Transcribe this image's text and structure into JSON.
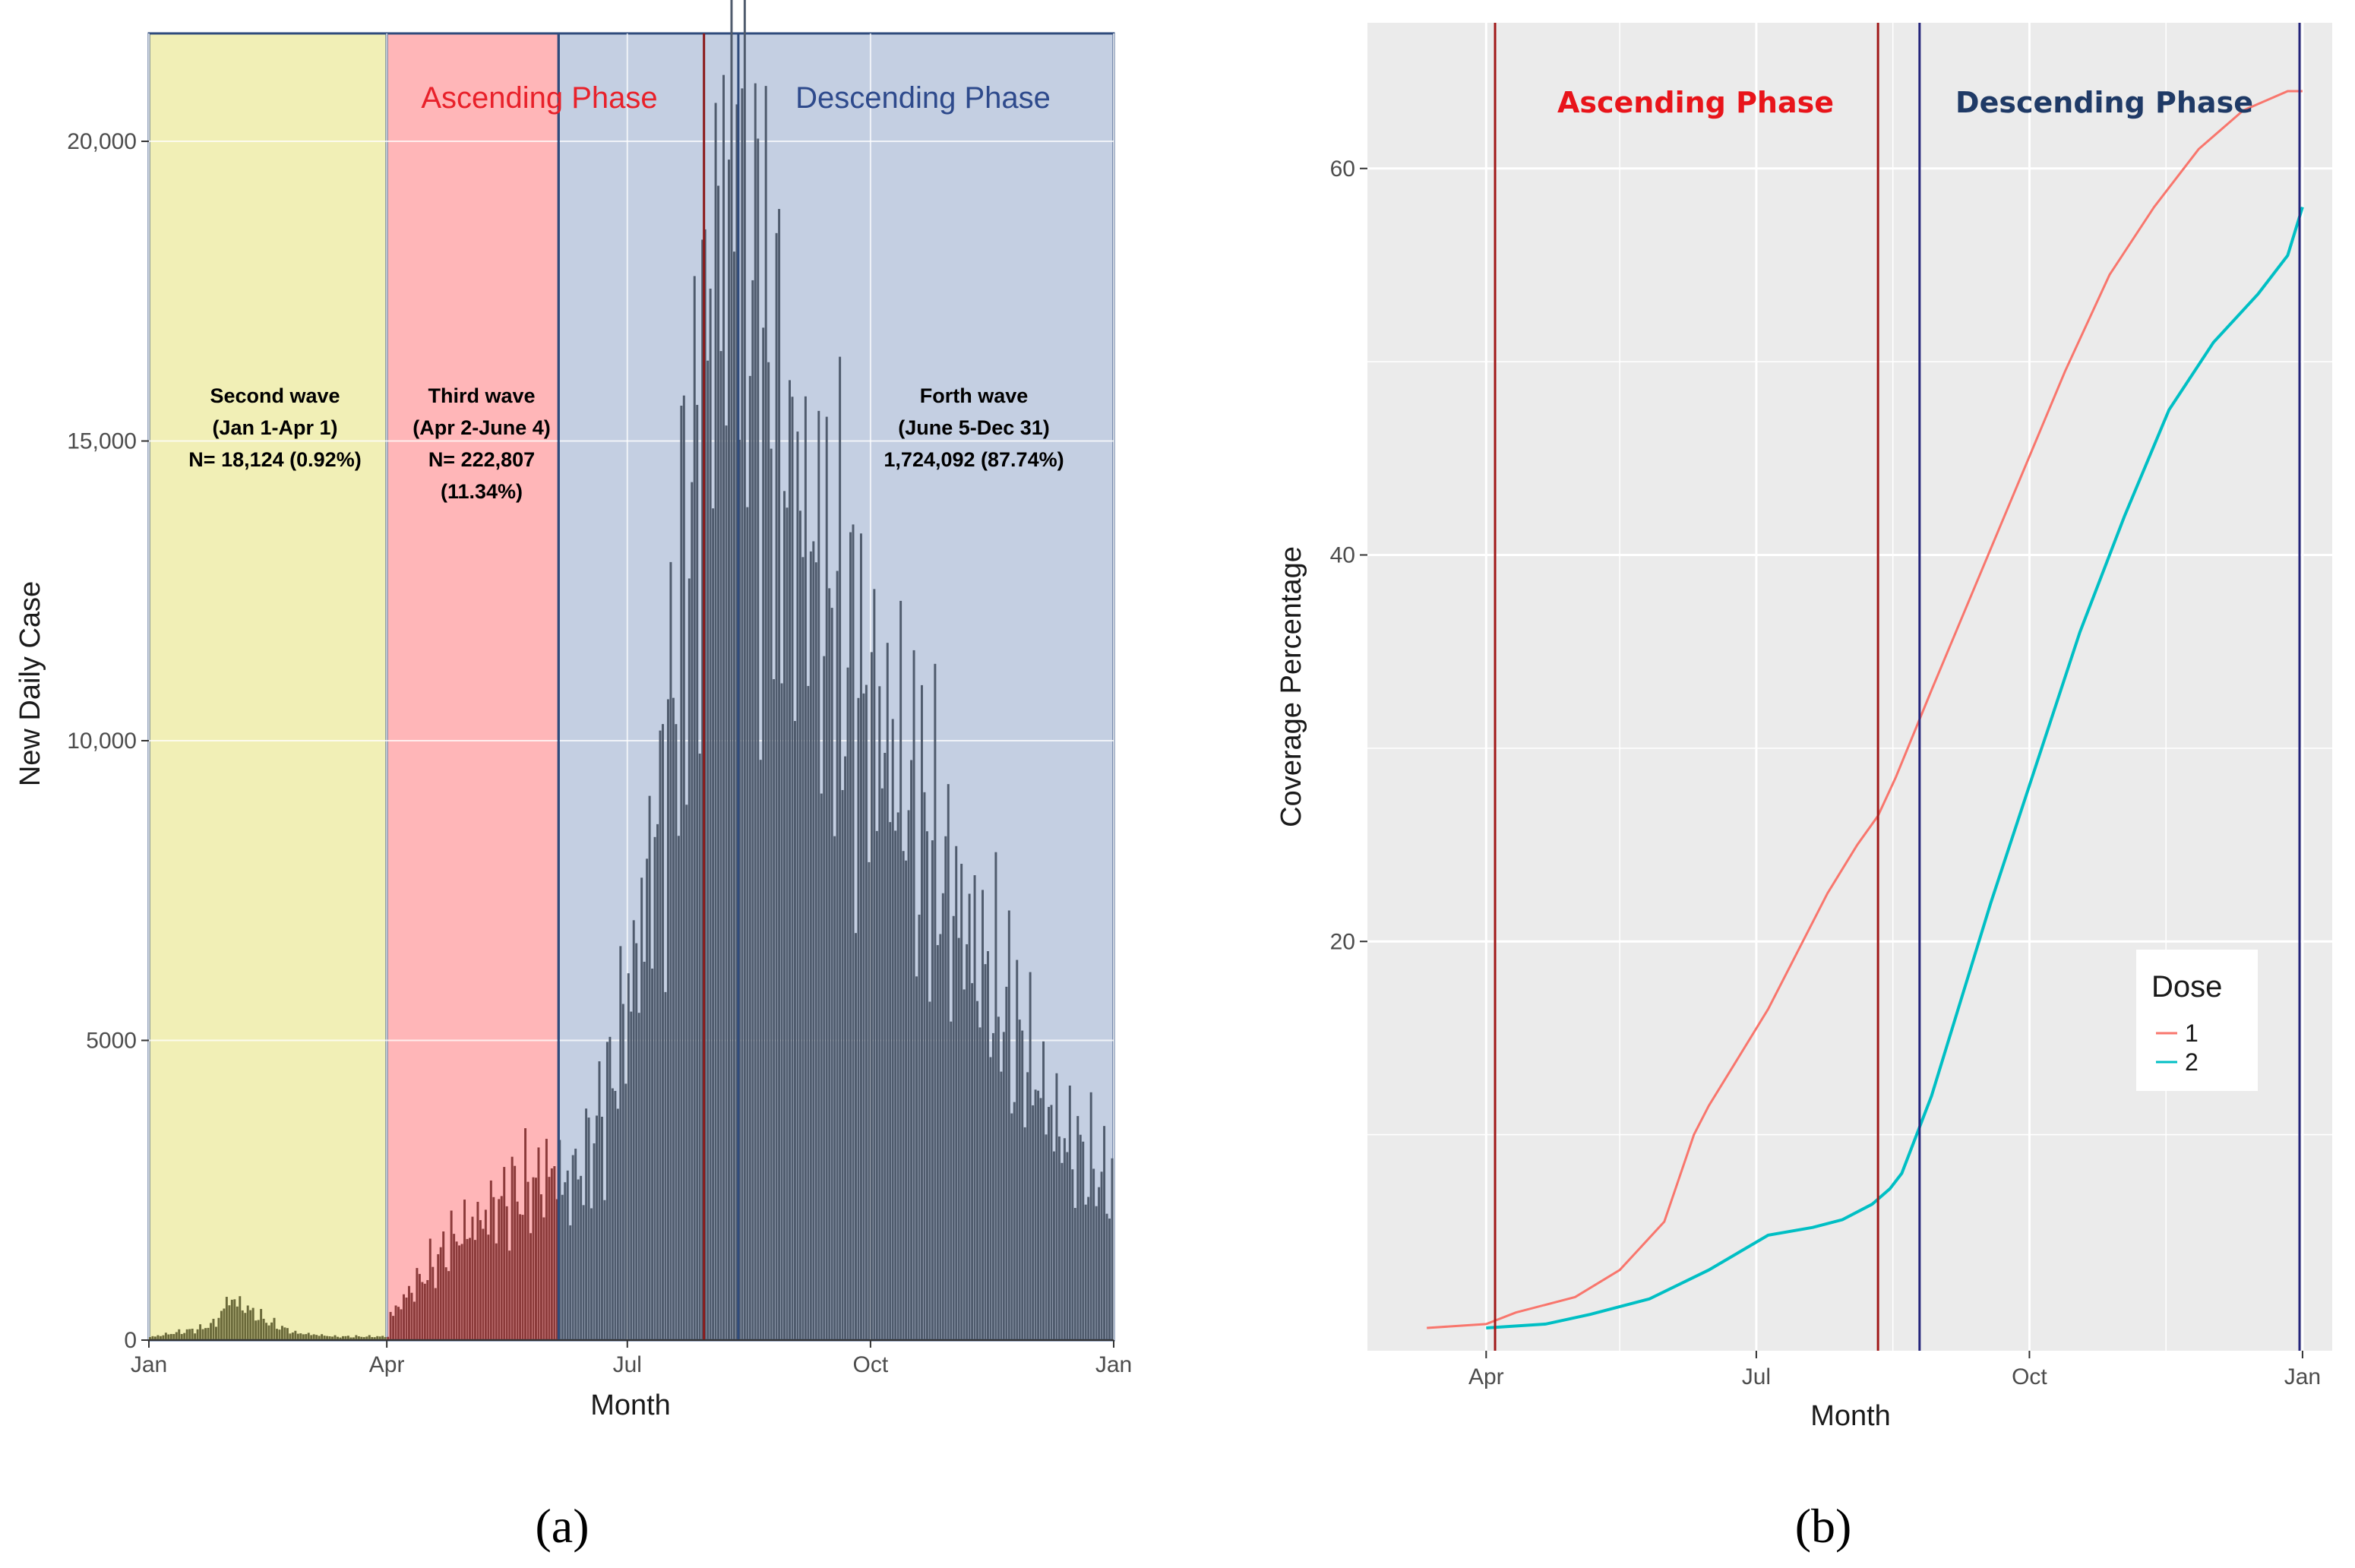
{
  "chart_data": [
    {
      "type": "bar",
      "panel_label": "(a)",
      "xlabel": "Month",
      "ylabel": "New Daily Case",
      "x_ticks": [
        "Jan",
        "Apr",
        "Jul",
        "Oct",
        "Jan"
      ],
      "y_ticks": [
        "0",
        "5000",
        "10,000",
        "15,000",
        "20,000"
      ],
      "ylim": [
        0,
        21800
      ],
      "phase_labels": [
        {
          "text": "Ascending Phase",
          "color": "#e8212a"
        },
        {
          "text": "Descending Phase",
          "color": "#2e4a8c"
        }
      ],
      "waves": [
        {
          "title": "Second wave",
          "range": "(Jan 1-Apr 1)",
          "lines": [
            "N= 18,124 (0.92%)"
          ],
          "fill": "#f1efb6"
        },
        {
          "title": "Third wave",
          "range": "(Apr 2-June 4)",
          "lines": [
            "N= 222,807",
            "(11.34%)"
          ],
          "fill": "#ffb6b8"
        },
        {
          "title": "Forth wave",
          "range": "(June 5-Dec 31)",
          "lines": [
            "1,724,092 (87.74%)"
          ],
          "fill": "#c4cfe2"
        }
      ],
      "series_profile": {
        "days": [
          0,
          20,
          25,
          30,
          45,
          55,
          70,
          90,
          91,
          100,
          108,
          115,
          125,
          135,
          145,
          155,
          156,
          165,
          175,
          185,
          195,
          205,
          210,
          215,
          222,
          226,
          240,
          255,
          270,
          290,
          310,
          330,
          345,
          365
        ],
        "cases": [
          50,
          200,
          300,
          700,
          300,
          120,
          60,
          60,
          400,
          900,
          1300,
          1700,
          2000,
          2400,
          2600,
          2900,
          2500,
          3000,
          4400,
          6600,
          9500,
          14000,
          16500,
          18200,
          19800,
          18300,
          14500,
          12500,
          10800,
          8800,
          6700,
          4900,
          3400,
          2500
        ]
      },
      "bar_colors": {
        "second_wave": "#6b6a3a",
        "third_wave": "#8b3a3a",
        "fourth_wave": "#4f5b6d"
      }
    },
    {
      "type": "line",
      "panel_label": "(b)",
      "xlabel": "Month",
      "ylabel": "Coverage Percentage",
      "x_ticks": [
        "Apr",
        "Jul",
        "Oct",
        "Jan"
      ],
      "y_ticks": [
        "20",
        "40",
        "60"
      ],
      "ylim": [
        0,
        64
      ],
      "phase_labels": [
        {
          "text": "Ascending Phase",
          "color": "#e8141a"
        },
        {
          "text": "Descending Phase",
          "color": "#1f3a66"
        }
      ],
      "legend": {
        "title": "Dose",
        "placement": "right"
      },
      "series": [
        {
          "name": "1",
          "color": "#f8766d",
          "x": [
            70,
            90,
            100,
            120,
            135,
            150,
            160,
            165,
            175,
            185,
            195,
            205,
            215,
            222,
            228,
            240,
            255,
            270,
            285,
            300,
            315,
            330,
            345,
            360,
            365
          ],
          "y": [
            0,
            0.2,
            0.8,
            1.6,
            3.0,
            5.5,
            10.0,
            11.5,
            14.0,
            16.5,
            19.5,
            22.5,
            25.0,
            26.5,
            28.5,
            33.0,
            38.5,
            44.0,
            49.5,
            54.5,
            58.0,
            61.0,
            63.0,
            64.0,
            64.0
          ]
        },
        {
          "name": "2",
          "color": "#00bfc4",
          "x": [
            90,
            110,
            125,
            145,
            165,
            185,
            200,
            210,
            220,
            226,
            230,
            240,
            250,
            260,
            275,
            290,
            305,
            320,
            335,
            350,
            360,
            365
          ],
          "y": [
            0,
            0.2,
            0.7,
            1.5,
            3.0,
            4.8,
            5.2,
            5.6,
            6.4,
            7.2,
            8.0,
            12.0,
            17.0,
            22.0,
            29.0,
            36.0,
            42.0,
            47.5,
            51.0,
            53.5,
            55.5,
            58.0
          ]
        }
      ]
    }
  ]
}
